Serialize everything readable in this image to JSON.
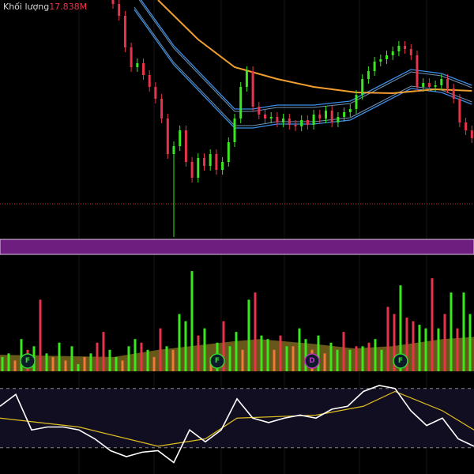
{
  "legend": {
    "label": "Khối lượng",
    "value": "17.838M"
  },
  "colors": {
    "up": "#39e81e",
    "down": "#e8344a",
    "down_low": "#f07838",
    "ma_long": "#f0a030",
    "band": "#3a8ee8",
    "band_mid": "#9fd0ff",
    "purple_strip": "#6e1e7e",
    "vol_ma": "#8a7420",
    "rsi": "#ffffff",
    "rsi_ma": "#e0c020",
    "ref_line": "#c83030"
  },
  "chart_data": {
    "type": "candlestick",
    "price": {
      "ylim": [
        0,
        300
      ],
      "open": [
        300,
        295,
        280,
        240,
        215,
        220,
        205,
        190,
        175,
        150,
        105,
        115,
        135,
        95,
        75,
        100,
        90,
        105,
        85,
        95,
        120,
        150,
        190,
        210,
        165,
        155,
        150,
        152,
        145,
        150,
        142,
        140,
        148,
        142,
        155,
        150,
        160,
        145,
        152,
        158,
        162,
        180,
        200,
        210,
        222,
        225,
        230,
        235,
        242,
        238,
        230,
        190,
        195,
        190,
        192,
        200,
        188,
        175,
        145,
        135
      ],
      "close": [
        295,
        280,
        240,
        215,
        220,
        205,
        190,
        175,
        150,
        105,
        115,
        135,
        95,
        75,
        100,
        90,
        105,
        85,
        95,
        120,
        150,
        190,
        210,
        165,
        155,
        150,
        152,
        145,
        150,
        142,
        140,
        148,
        142,
        155,
        150,
        160,
        145,
        152,
        158,
        162,
        180,
        200,
        210,
        222,
        225,
        230,
        235,
        242,
        238,
        230,
        190,
        195,
        190,
        192,
        200,
        188,
        175,
        145,
        135,
        125
      ],
      "high": [
        306,
        301,
        286,
        246,
        226,
        226,
        211,
        196,
        181,
        156,
        121,
        141,
        141,
        101,
        106,
        106,
        111,
        111,
        101,
        126,
        156,
        196,
        216,
        216,
        171,
        161,
        158,
        158,
        156,
        156,
        148,
        154,
        154,
        161,
        161,
        166,
        166,
        158,
        164,
        168,
        186,
        206,
        216,
        228,
        231,
        236,
        241,
        248,
        248,
        244,
        236,
        201,
        201,
        198,
        206,
        206,
        194,
        181,
        151,
        141
      ],
      "low": [
        289,
        274,
        234,
        209,
        209,
        199,
        184,
        169,
        144,
        99,
        0,
        109,
        89,
        69,
        69,
        84,
        84,
        79,
        79,
        89,
        114,
        144,
        184,
        159,
        149,
        144,
        144,
        139,
        139,
        136,
        134,
        134,
        136,
        136,
        144,
        144,
        139,
        139,
        146,
        152,
        156,
        174,
        194,
        204,
        216,
        219,
        224,
        229,
        232,
        224,
        184,
        184,
        184,
        184,
        186,
        182,
        169,
        139,
        129,
        119
      ],
      "ma_long": [
        [
          7.4,
          300
        ],
        [
          14,
          250
        ],
        [
          20,
          215
        ],
        [
          27,
          200
        ],
        [
          33,
          190
        ],
        [
          40,
          183
        ],
        [
          46,
          182
        ],
        [
          53,
          187
        ],
        [
          59,
          185
        ]
      ],
      "band_mid": [
        [
          3.5,
          300
        ],
        [
          10,
          230
        ],
        [
          15,
          190
        ],
        [
          20,
          150
        ],
        [
          23,
          150
        ],
        [
          27,
          155
        ],
        [
          33,
          155
        ],
        [
          39,
          160
        ],
        [
          44,
          180
        ],
        [
          49,
          200
        ],
        [
          54,
          195
        ],
        [
          59,
          180
        ]
      ],
      "band_width": 12,
      "ref_level": 42
    },
    "volume": {
      "values": [
        20,
        25,
        15,
        45,
        30,
        35,
        100,
        25,
        20,
        40,
        15,
        35,
        10,
        20,
        25,
        40,
        55,
        30,
        20,
        15,
        35,
        45,
        40,
        30,
        20,
        60,
        35,
        30,
        80,
        70,
        140,
        50,
        60,
        20,
        40,
        70,
        35,
        55,
        30,
        100,
        110,
        50,
        45,
        30,
        50,
        35,
        35,
        60,
        45,
        30,
        50,
        25,
        40,
        30,
        55,
        30,
        35,
        35,
        40,
        45,
        30,
        90,
        80,
        120,
        75,
        70,
        65,
        60,
        130,
        60,
        80,
        110,
        60,
        110,
        80
      ],
      "up": [
        1,
        1,
        0,
        1,
        0,
        1,
        0,
        1,
        0,
        1,
        0,
        1,
        1,
        0,
        1,
        0,
        0,
        1,
        1,
        0,
        1,
        1,
        0,
        1,
        0,
        0,
        1,
        0,
        1,
        1,
        1,
        0,
        1,
        0,
        1,
        0,
        1,
        1,
        0,
        1,
        0,
        1,
        1,
        0,
        0,
        1,
        0,
        1,
        1,
        0,
        1,
        0,
        1,
        1,
        0,
        1,
        0,
        1,
        0,
        1,
        1,
        0,
        0,
        1,
        0,
        0,
        1,
        1,
        0,
        1,
        0,
        1,
        0,
        1,
        1
      ],
      "ma": [
        [
          0,
          23
        ],
        [
          18,
          20
        ],
        [
          25,
          30
        ],
        [
          37,
          42
        ],
        [
          41,
          45
        ],
        [
          50,
          38
        ],
        [
          56,
          32
        ],
        [
          62,
          35
        ],
        [
          70,
          45
        ],
        [
          75,
          48
        ]
      ],
      "ymax": 160
    },
    "markers": [
      {
        "label": "F",
        "bar": 4,
        "color": "#2ed82e"
      },
      {
        "label": "F",
        "bar": 34,
        "color": "#2ed82e"
      },
      {
        "label": "D",
        "bar": 49,
        "color": "#c030c0"
      },
      {
        "label": "F",
        "bar": 63,
        "color": "#2ed82e"
      }
    ],
    "rsi": {
      "values": [
        58,
        66,
        42,
        44,
        44,
        42,
        36,
        28,
        24,
        27,
        28,
        20,
        42,
        34,
        42,
        63,
        50,
        47,
        50,
        52,
        50,
        56,
        58,
        68,
        72,
        70,
        55,
        45,
        50,
        36,
        31
      ],
      "ma": [
        [
          0,
          50
        ],
        [
          5,
          44
        ],
        [
          10,
          31
        ],
        [
          13,
          36
        ],
        [
          15,
          50
        ],
        [
          20,
          52
        ],
        [
          23,
          58
        ],
        [
          25,
          68
        ],
        [
          28,
          55
        ],
        [
          30,
          42
        ]
      ],
      "upper": 70,
      "lower": 30
    }
  }
}
